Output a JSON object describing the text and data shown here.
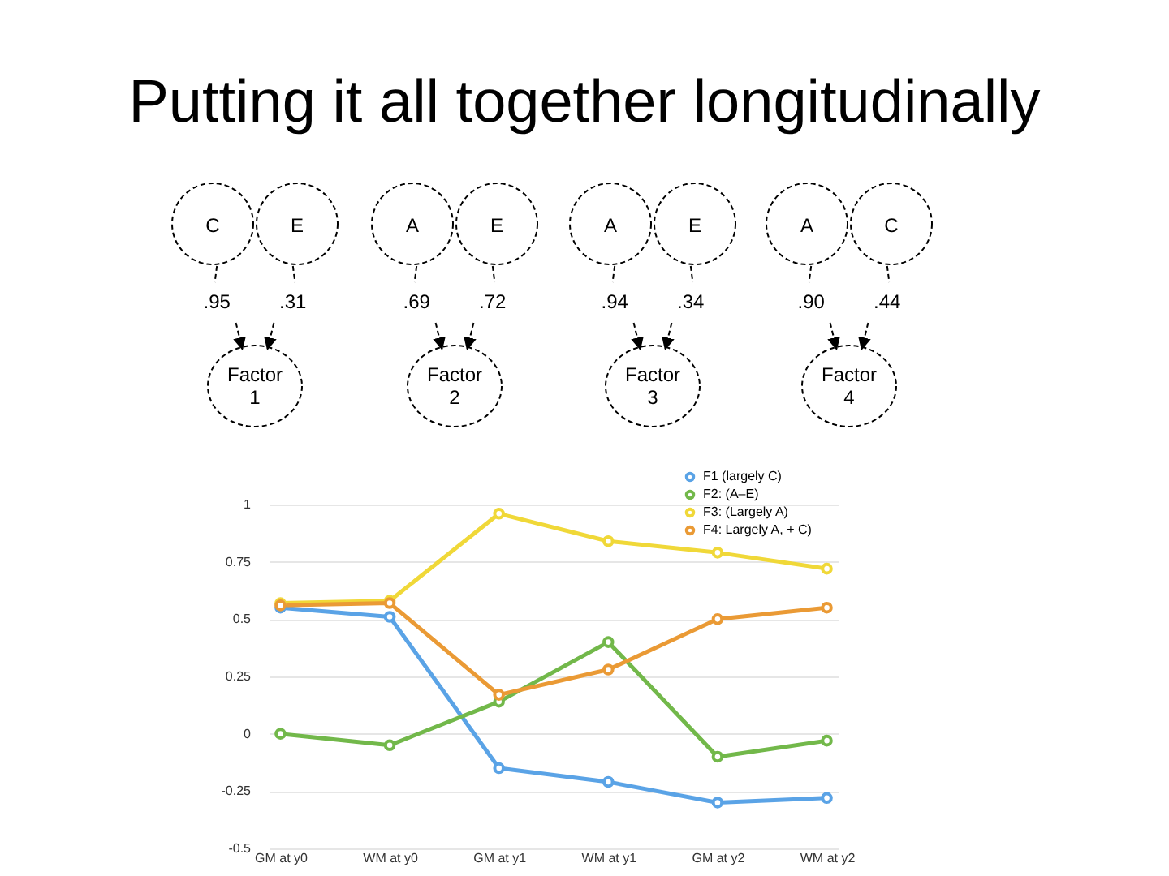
{
  "chart_data": {
    "type": "line",
    "title": "Putting it all together longitudinally",
    "annotations": [
      "C",
      "E",
      ".95",
      ".31",
      "Factor 1",
      "A",
      "E",
      ".69",
      ".72",
      "Factor 2",
      "A",
      "E",
      ".94",
      ".34",
      "Factor 3",
      "A",
      "C",
      ".90",
      ".44",
      "Factor 4"
    ],
    "categories": [
      "GM at y0",
      "WM at y0",
      "GM at y1",
      "WM at y1",
      "GM at y2",
      "WM at y2"
    ],
    "series": [
      {
        "name": "F1 (largely C)",
        "color": "#5aa3e6",
        "values": [
          0.55,
          0.51,
          -0.15,
          -0.21,
          -0.3,
          -0.28
        ]
      },
      {
        "name": "F2: (A–E)",
        "color": "#72b84a",
        "values": [
          0,
          -0.05,
          0.14,
          0.4,
          -0.1,
          -0.03
        ]
      },
      {
        "name": "F3: (Largely A)",
        "color": "#f0d838",
        "values": [
          0.57,
          0.58,
          0.96,
          0.84,
          0.79,
          0.72
        ]
      },
      {
        "name": "F4: Largely A, + C)",
        "color": "#ea9a35",
        "values": [
          0.56,
          0.57,
          0.17,
          0.28,
          0.5,
          0.55
        ]
      }
    ],
    "ylim": [
      -0.5,
      1
    ],
    "yticks": [
      -0.5,
      -0.25,
      0,
      0.25,
      0.5,
      0.75,
      1
    ],
    "grid": "y",
    "legend": "top right",
    "marker": "circle",
    "line_style": "solid"
  }
}
